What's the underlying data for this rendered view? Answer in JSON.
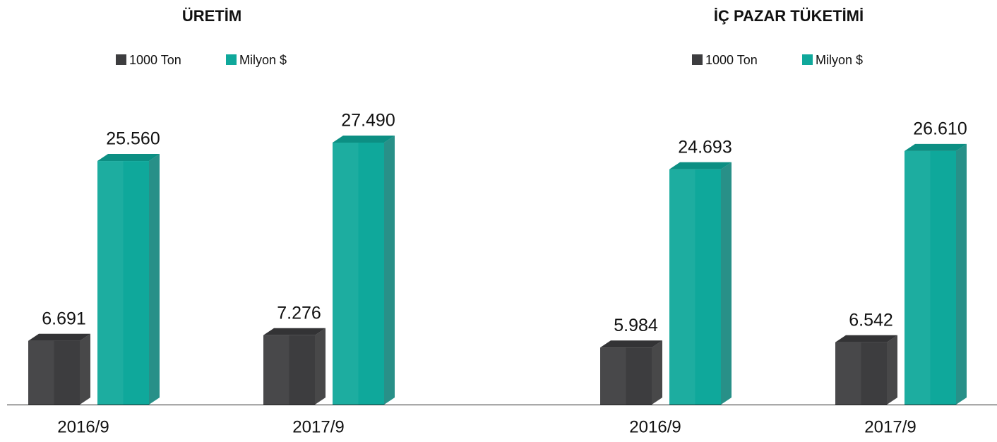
{
  "chart_data": [
    {
      "type": "bar",
      "title": "ÜRETİM",
      "categories": [
        "2016/9",
        "2017/9"
      ],
      "series": [
        {
          "name": "1000 Ton",
          "color": "#3d3d3f",
          "values": [
            6691,
            7276
          ],
          "value_labels": [
            "6.691",
            "7.276"
          ]
        },
        {
          "name": "Milyon $",
          "color": "#0fa89b",
          "values": [
            25560,
            27490
          ],
          "value_labels": [
            "25.560",
            "27.490"
          ]
        }
      ]
    },
    {
      "type": "bar",
      "title": "İÇ PAZAR TÜKETİMİ",
      "categories": [
        "2016/9",
        "2017/9"
      ],
      "series": [
        {
          "name": "1000 Ton",
          "color": "#3d3d3f",
          "values": [
            5984,
            6542
          ],
          "value_labels": [
            "5.984",
            "6.542"
          ]
        },
        {
          "name": "Milyon $",
          "color": "#0fa89b",
          "values": [
            24693,
            26610
          ],
          "value_labels": [
            "24.693",
            "26.610"
          ]
        }
      ]
    }
  ]
}
